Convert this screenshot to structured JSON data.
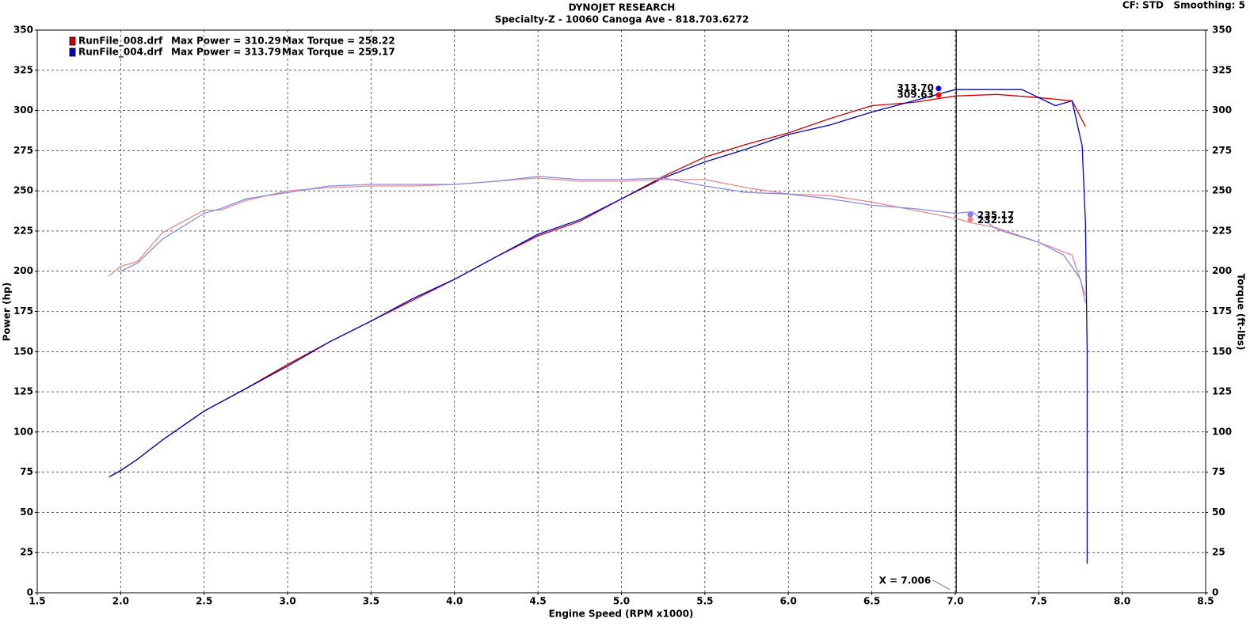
{
  "chart_data": {
    "type": "line",
    "title": "DYNOJET RESEARCH",
    "subtitle": "Specialty-Z - 10060 Canoga Ave - 818.703.6272",
    "corner_note": "CF: STD   Smoothing: 5",
    "x_label": "Engine Speed (RPM x1000)",
    "y_label": "Power (hp)",
    "y2_label": "Torque (ft-lbs)",
    "xlim": [
      1.5,
      8.5
    ],
    "xticks": [
      {
        "value": 1.5,
        "label": "1.5"
      },
      {
        "value": 2,
        "label": "2.0"
      },
      {
        "value": 2.5,
        "label": "2.5"
      },
      {
        "value": 3,
        "label": "3.0"
      },
      {
        "value": 3.5,
        "label": "3.5"
      },
      {
        "value": 4,
        "label": "4.0"
      },
      {
        "value": 4.5,
        "label": "4.5"
      },
      {
        "value": 5,
        "label": "5.0"
      },
      {
        "value": 5.5,
        "label": "5.5"
      },
      {
        "value": 6,
        "label": "6.0"
      },
      {
        "value": 6.5,
        "label": "6.5"
      },
      {
        "value": 7,
        "label": "7.0"
      },
      {
        "value": 7.5,
        "label": "7.5"
      },
      {
        "value": 8,
        "label": "8.0"
      },
      {
        "value": 8.5,
        "label": "8.5"
      }
    ],
    "ylim": [
      0,
      350
    ],
    "yticks": [
      0,
      25,
      50,
      75,
      100,
      125,
      150,
      175,
      200,
      225,
      250,
      275,
      300,
      325,
      350
    ],
    "y2lim": [
      0,
      350
    ],
    "y2ticks": [
      0,
      25,
      50,
      75,
      100,
      125,
      150,
      175,
      200,
      225,
      250,
      275,
      300,
      325,
      350
    ],
    "grid": true,
    "series": [
      {
        "name": "RunFile_008.drf",
        "color": "#d00000",
        "stats": [
          "Max Power = 310.29",
          "Max Torque = 258.22"
        ],
        "x": [
          1.93,
          2.0,
          2.1,
          2.25,
          2.5,
          2.75,
          3.0,
          3.25,
          3.5,
          3.75,
          4.0,
          4.25,
          4.5,
          4.75,
          5.0,
          5.25,
          5.5,
          5.75,
          6.0,
          6.25,
          6.5,
          6.75,
          7.0,
          7.25,
          7.5,
          7.7,
          7.78
        ],
        "values": [
          72,
          76,
          83,
          95,
          113,
          127,
          142,
          156,
          169,
          182,
          195,
          209,
          222,
          231,
          245,
          259,
          271,
          279,
          286,
          295,
          303,
          305,
          309,
          310,
          308,
          306,
          290
        ]
      },
      {
        "name": "RunFile_004.drf",
        "color": "#0000c8",
        "stats": [
          "Max Power = 313.79",
          "Max Torque = 259.17"
        ],
        "x": [
          1.93,
          2.0,
          2.1,
          2.25,
          2.5,
          2.75,
          3.0,
          3.25,
          3.5,
          3.75,
          4.0,
          4.25,
          4.5,
          4.75,
          5.0,
          5.25,
          5.5,
          5.75,
          6.0,
          6.25,
          6.5,
          6.75,
          7.0,
          7.25,
          7.4,
          7.6,
          7.7,
          7.76,
          7.78,
          7.79,
          7.79,
          7.79
        ],
        "values": [
          72,
          76,
          83,
          95,
          113,
          127,
          141,
          156,
          169,
          183,
          195,
          209,
          223,
          232,
          245,
          258,
          268,
          276,
          285,
          291,
          299,
          306,
          313,
          313,
          313,
          303,
          306,
          278,
          230,
          150,
          60,
          18
        ]
      },
      {
        "color": "#e88a8a",
        "axis": "y2",
        "x": [
          1.93,
          2.0,
          2.1,
          2.25,
          2.5,
          2.6,
          2.75,
          3.0,
          3.25,
          3.5,
          3.75,
          4.0,
          4.25,
          4.5,
          4.75,
          5.0,
          5.25,
          5.5,
          5.75,
          6.0,
          6.25,
          6.5,
          6.75,
          7.0,
          7.1,
          7.25,
          7.5,
          7.7,
          7.78
        ],
        "values": [
          197,
          203,
          206,
          224,
          238,
          238,
          244,
          250,
          252,
          253,
          253,
          254,
          256,
          258,
          256,
          256,
          257,
          257,
          252,
          248,
          247,
          243,
          238,
          233,
          230,
          227,
          218,
          210,
          185
        ]
      },
      {
        "color": "#8a8ae8",
        "axis": "y2",
        "x": [
          2.0,
          2.1,
          2.25,
          2.5,
          2.6,
          2.75,
          3.0,
          3.25,
          3.5,
          3.75,
          4.0,
          4.25,
          4.5,
          4.75,
          5.0,
          5.25,
          5.5,
          5.75,
          6.0,
          6.25,
          6.5,
          6.75,
          7.0,
          7.1,
          7.25,
          7.5,
          7.65,
          7.75,
          7.78
        ],
        "values": [
          200,
          205,
          220,
          236,
          239,
          245,
          249,
          253,
          254,
          254,
          254,
          256,
          259,
          257,
          257,
          258,
          253,
          249,
          248,
          245,
          241,
          239,
          236,
          237,
          226,
          218,
          210,
          195,
          180
        ]
      }
    ],
    "annotations": [
      {
        "x": 6.9,
        "value": 313.7,
        "label": "313.70",
        "color": "#0000ff",
        "side": "left"
      },
      {
        "x": 6.9,
        "value": 309.63,
        "label": "309.63",
        "color": "#ff0000",
        "side": "left"
      },
      {
        "x": 7.09,
        "value": 235.17,
        "label": "235.17",
        "color": "#8080ff",
        "side": "right"
      },
      {
        "x": 7.09,
        "value": 232.12,
        "label": "232.12",
        "color": "#ff8080",
        "side": "right"
      }
    ],
    "cursor": {
      "value": 7.006,
      "label": "X = 7.006"
    }
  }
}
